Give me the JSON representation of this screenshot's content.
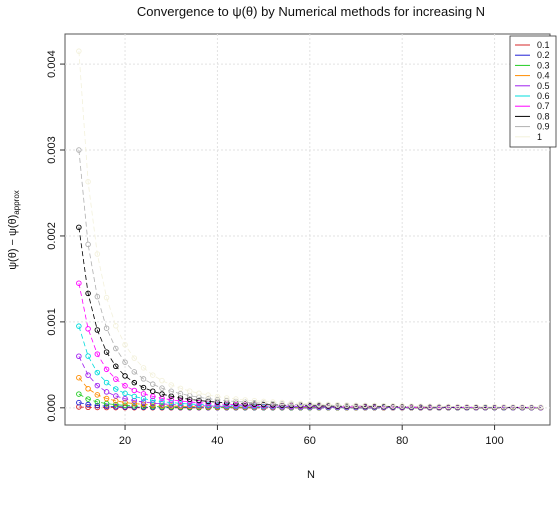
{
  "chart_data": {
    "type": "line",
    "title": "Convergence to ψ(θ) by Numerical methods for increasing N",
    "xlabel": "N",
    "ylabel": "ψ(θ) − ψ(θ)",
    "ylabel_subscript": "approx",
    "xlim": [
      7,
      112
    ],
    "ylim": [
      -0.0002,
      0.00435
    ],
    "x_ticks": [
      20,
      40,
      60,
      80,
      100
    ],
    "x_tick_labels": [
      "20",
      "40",
      "60",
      "80",
      "100"
    ],
    "y_ticks": [
      0.0,
      0.001,
      0.002,
      0.003,
      0.004
    ],
    "y_tick_labels": [
      "0.000",
      "0.001",
      "0.002",
      "0.003",
      "0.004"
    ],
    "grid": true,
    "legend_position": "top-right",
    "x": [
      10,
      12,
      14,
      16,
      18,
      20,
      22,
      24,
      26,
      28,
      30,
      32,
      34,
      36,
      38,
      40,
      42,
      44,
      46,
      48,
      50,
      52,
      54,
      56,
      58,
      60,
      62,
      64,
      66,
      68,
      70,
      72,
      74,
      76,
      78,
      80,
      82,
      84,
      86,
      88,
      90,
      92,
      94,
      96,
      98,
      100,
      102,
      104,
      106,
      108,
      110
    ],
    "series": [
      {
        "name": "0.1",
        "color": "#d62728",
        "start": 1e-05
      },
      {
        "name": "0.2",
        "color": "#1f1fd6",
        "start": 6e-05
      },
      {
        "name": "0.3",
        "color": "#22cc22",
        "start": 0.00016
      },
      {
        "name": "0.4",
        "color": "#ff8c00",
        "start": 0.00035
      },
      {
        "name": "0.5",
        "color": "#a020f0",
        "start": 0.0006
      },
      {
        "name": "0.6",
        "color": "#00dcdc",
        "start": 0.00095
      },
      {
        "name": "0.7",
        "color": "#ff00ff",
        "start": 0.00145
      },
      {
        "name": "0.8",
        "color": "#000000",
        "start": 0.0021
      },
      {
        "name": "0.9",
        "color": "#b0b0b0",
        "start": 0.003
      },
      {
        "name": "1",
        "color": "#f3f1dc",
        "start": 0.00415
      }
    ]
  }
}
